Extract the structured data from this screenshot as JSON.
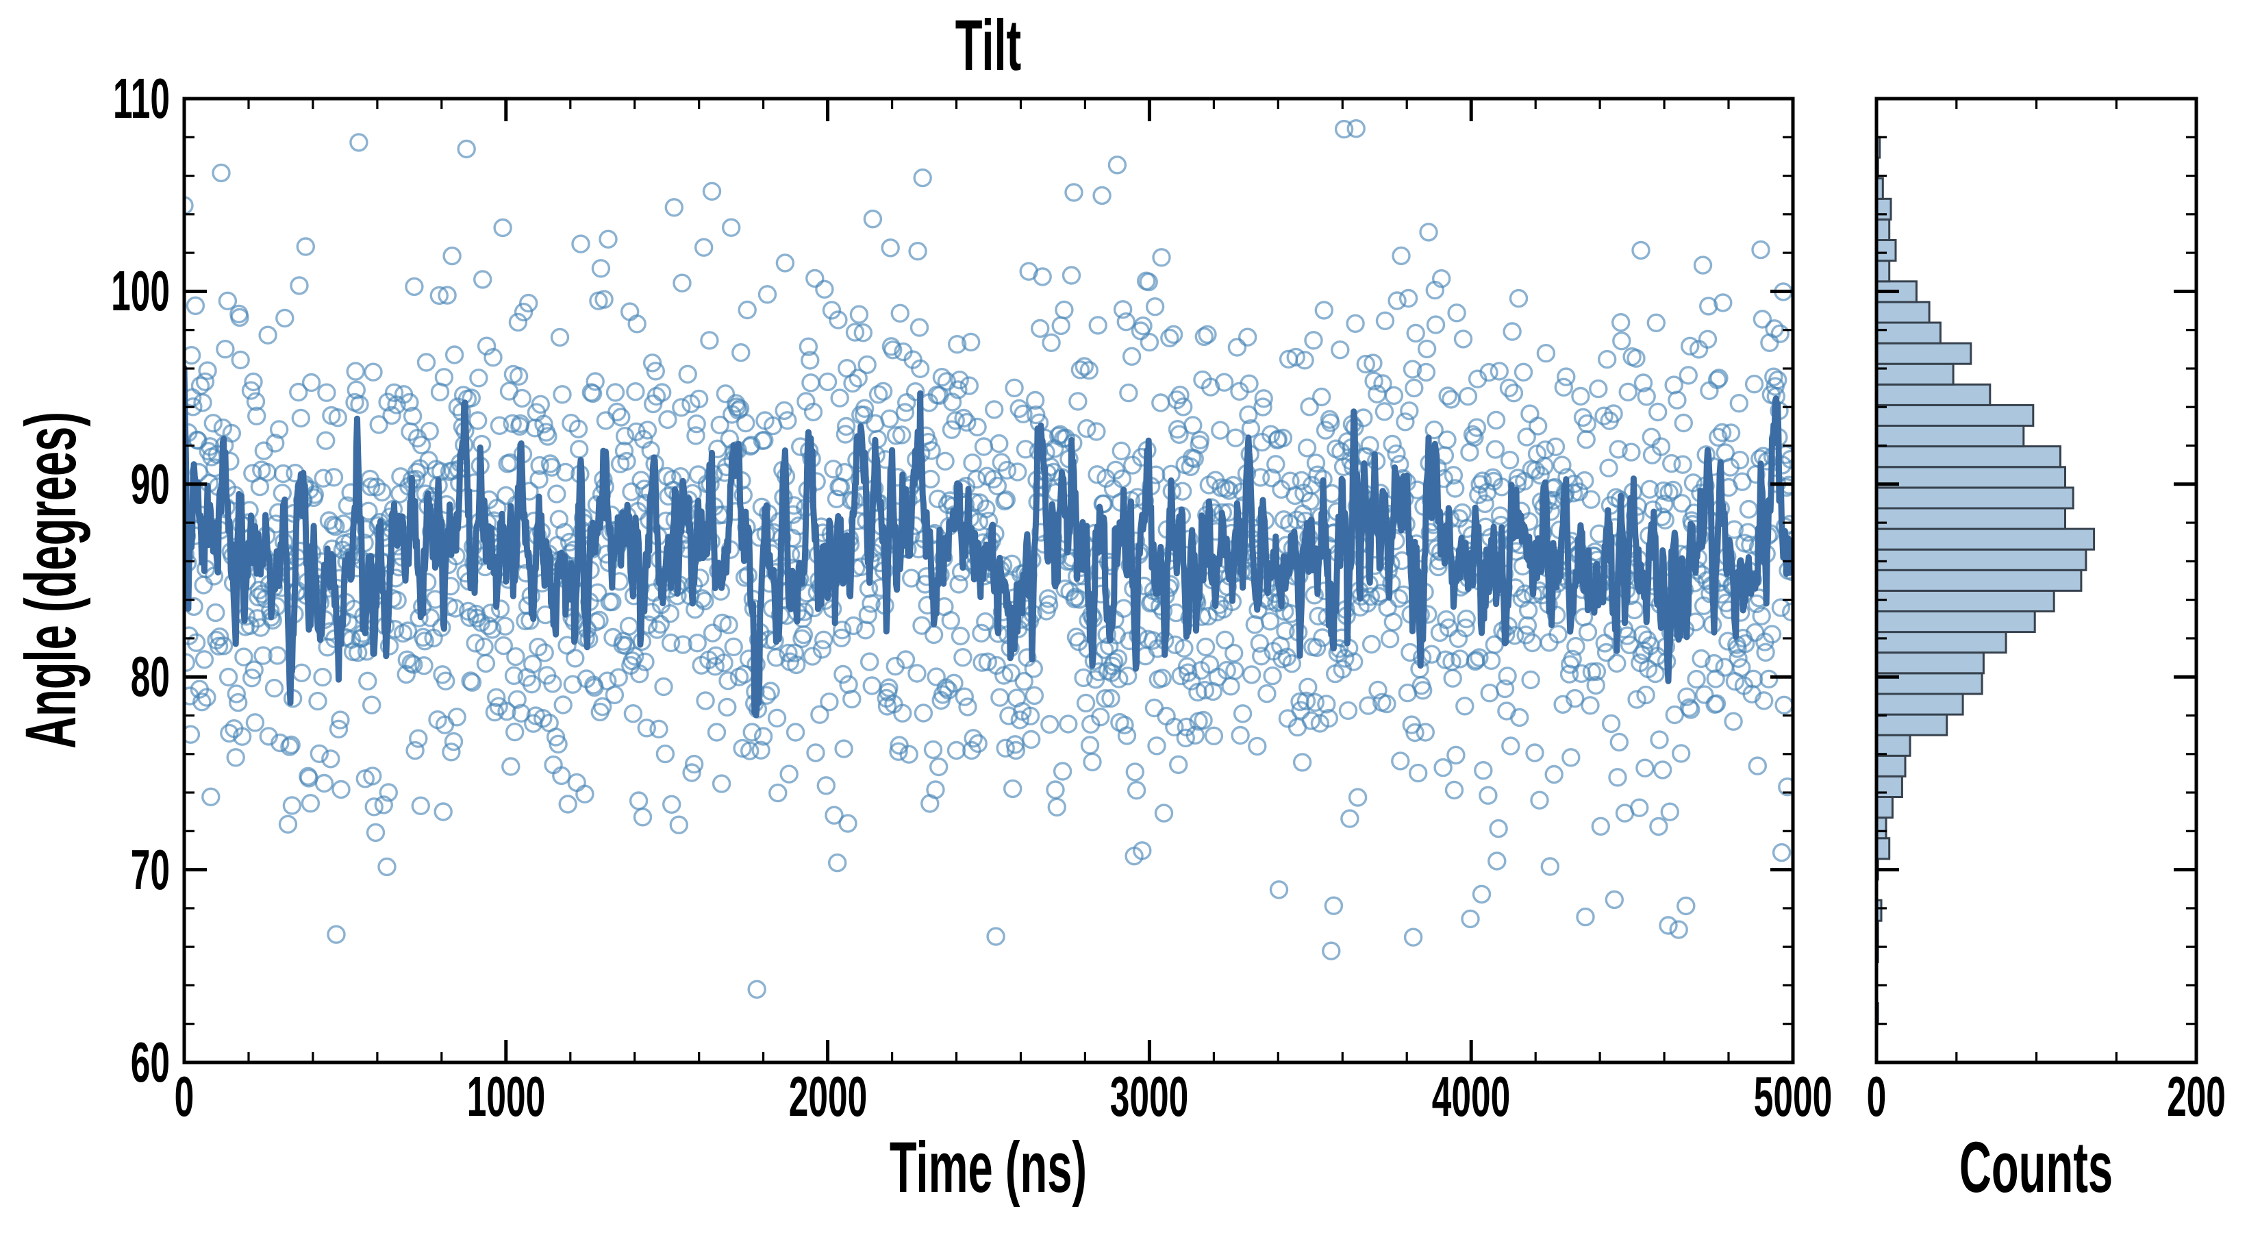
{
  "style": {
    "background": "#ffffff",
    "text_color": "#000000",
    "spine_color": "#000000",
    "scatter_edge": "#4682b4",
    "scatter_opacity": 0.62,
    "line_color": "#3b6ca3",
    "hist_fill": "#abc6dd",
    "hist_edge": "#37424e"
  },
  "chart_data": [
    {
      "type": "scatter",
      "title": "Tilt",
      "xlabel": "Time (ns)",
      "ylabel": "Angle (degrees)",
      "xlim": [
        0,
        5000
      ],
      "ylim": [
        60,
        110
      ],
      "xticks": [
        0,
        1000,
        2000,
        3000,
        4000,
        5000
      ],
      "xtick_labels": [
        "0",
        "1000",
        "2000",
        "3000",
        "4000",
        "5000"
      ],
      "x_minor_step": 200,
      "yticks": [
        110,
        100,
        90,
        80,
        70,
        60
      ],
      "ytick_labels": [
        "110",
        "100",
        "90",
        "80",
        "70",
        "60"
      ],
      "y_minor_step": 2,
      "grid": false,
      "legend": "none",
      "tick_style": "inward, mirrored on all four spines; major 33px, minor 15px",
      "observed_scatter_range": [
        62,
        108.2
      ],
      "observed_line_range": [
        76,
        96
      ],
      "series": [
        {
          "name": "tilt-samples",
          "kind": "scatter-markers",
          "marker": "open-circle",
          "n_points": 2000,
          "t_start": 0,
          "t_step_ns": 2.5,
          "distribution": "normal",
          "mean_deg": 86.8,
          "sd_deg": 6.4,
          "seed": 7,
          "note": "~2000 noisy angle samples; values regenerated deterministically from these parameters (individual points not transcribable from pixels)"
        },
        {
          "name": "running-average",
          "kind": "line",
          "window_points": 7,
          "derived_from": "tilt-samples"
        }
      ]
    },
    {
      "type": "bar",
      "orientation": "horizontal",
      "xlabel": "Counts",
      "xlim": [
        0,
        200
      ],
      "xticks": [
        0,
        200
      ],
      "xtick_labels": [
        "0",
        "200"
      ],
      "x_minor_ticks": [
        50,
        100,
        150
      ],
      "ylim": [
        60,
        110
      ],
      "y_minor_step": 2,
      "bin_start_deg": 62.0,
      "bin_width_deg": 1.07,
      "counts": [
        1,
        0,
        0,
        1,
        1,
        3,
        0,
        1,
        8,
        6,
        10,
        16,
        18,
        21,
        44,
        54,
        66,
        67,
        81,
        99,
        111,
        128,
        131,
        136,
        118,
        123,
        118,
        115,
        92,
        98,
        71,
        48,
        59,
        40,
        33,
        25,
        8,
        12,
        8,
        9,
        4,
        1,
        2
      ]
    }
  ]
}
